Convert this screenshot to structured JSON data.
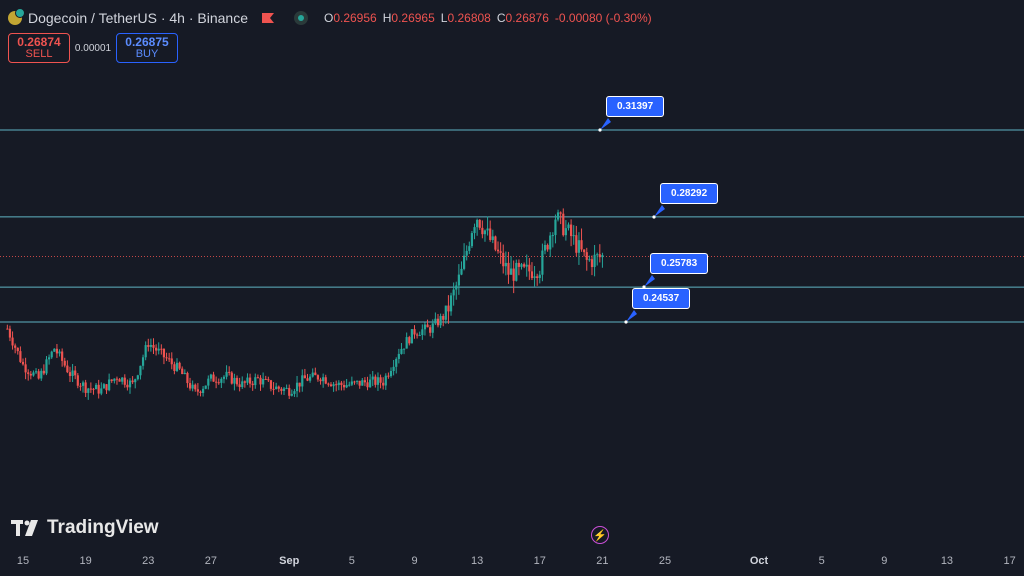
{
  "header": {
    "symbol": "Dogecoin / TetherUS · 4h · Binance",
    "ohlc": [
      {
        "k": "O",
        "v": "0.26956"
      },
      {
        "k": "H",
        "v": "0.26965"
      },
      {
        "k": "L",
        "v": "0.26808"
      },
      {
        "k": "C",
        "v": "0.26876"
      },
      {
        "k": "",
        "v": "-0.00080 (-0.30%)"
      }
    ]
  },
  "trade": {
    "sell_price": "0.26874",
    "sell_label": "SELL",
    "spread": "0.00001",
    "buy_price": "0.26875",
    "buy_label": "BUY"
  },
  "branding": {
    "logo": "TradingView"
  },
  "colors": {
    "up": "#26a69a",
    "down": "#ef5350",
    "level": "#5fb3c4",
    "callout": "#2962ff",
    "current": "#ef5350"
  },
  "chart_data": {
    "type": "candlestick",
    "title": "",
    "xlabel": "",
    "ylabel": "",
    "ylim": [
      0.215,
      0.34
    ],
    "x_ticks": [
      "15",
      "19",
      "23",
      "27",
      "Sep",
      "5",
      "9",
      "13",
      "17",
      "21",
      "25",
      "Oct",
      "5",
      "9",
      "13",
      "17"
    ],
    "bold_ticks": [
      "Sep",
      "Oct"
    ],
    "keypoints": [
      {
        "date": "2024-08-14",
        "price": 0.243
      },
      {
        "date": "2024-08-15",
        "price": 0.23
      },
      {
        "date": "2024-08-16",
        "price": 0.225
      },
      {
        "date": "2024-08-17",
        "price": 0.236
      },
      {
        "date": "2024-08-18",
        "price": 0.227
      },
      {
        "date": "2024-08-19",
        "price": 0.222
      },
      {
        "date": "2024-08-20",
        "price": 0.221
      },
      {
        "date": "2024-08-21",
        "price": 0.226
      },
      {
        "date": "2024-08-22",
        "price": 0.223
      },
      {
        "date": "2024-08-23",
        "price": 0.238
      },
      {
        "date": "2024-08-24",
        "price": 0.233
      },
      {
        "date": "2024-08-25",
        "price": 0.228
      },
      {
        "date": "2024-08-26",
        "price": 0.22
      },
      {
        "date": "2024-08-27",
        "price": 0.225
      },
      {
        "date": "2024-08-28",
        "price": 0.226
      },
      {
        "date": "2024-08-29",
        "price": 0.223
      },
      {
        "date": "2024-08-30",
        "price": 0.225
      },
      {
        "date": "2024-08-31",
        "price": 0.222
      },
      {
        "date": "2024-09-01",
        "price": 0.221
      },
      {
        "date": "2024-09-02",
        "price": 0.225
      },
      {
        "date": "2024-09-03",
        "price": 0.226
      },
      {
        "date": "2024-09-04",
        "price": 0.223
      },
      {
        "date": "2024-09-05",
        "price": 0.223
      },
      {
        "date": "2024-09-06",
        "price": 0.224
      },
      {
        "date": "2024-09-07",
        "price": 0.224
      },
      {
        "date": "2024-09-08",
        "price": 0.235
      },
      {
        "date": "2024-09-09",
        "price": 0.242
      },
      {
        "date": "2024-09-10",
        "price": 0.243
      },
      {
        "date": "2024-09-11",
        "price": 0.248
      },
      {
        "date": "2024-09-12",
        "price": 0.263
      },
      {
        "date": "2024-09-12T18:00",
        "price": 0.281
      },
      {
        "date": "2024-09-13",
        "price": 0.283
      },
      {
        "date": "2024-09-14",
        "price": 0.273
      },
      {
        "date": "2024-09-15",
        "price": 0.263
      },
      {
        "date": "2024-09-16",
        "price": 0.263
      },
      {
        "date": "2024-09-17",
        "price": 0.265
      },
      {
        "date": "2024-09-18",
        "price": 0.283
      },
      {
        "date": "2024-09-19",
        "price": 0.276
      },
      {
        "date": "2024-09-20",
        "price": 0.267
      },
      {
        "date": "2024-09-21",
        "price": 0.2688
      }
    ],
    "current_price": 0.26876,
    "levels": [
      {
        "value": 0.31397,
        "label": "0.31397"
      },
      {
        "value": 0.28292,
        "label": "0.28292"
      },
      {
        "value": 0.25783,
        "label": "0.25783"
      },
      {
        "value": 0.24537,
        "label": "0.24537"
      }
    ]
  }
}
